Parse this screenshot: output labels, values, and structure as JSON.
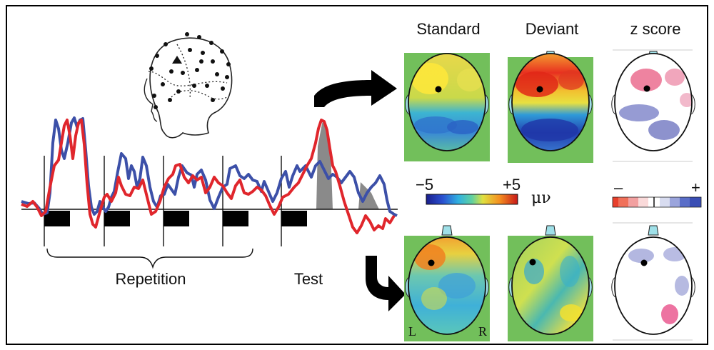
{
  "labels": {
    "standard": "Standard",
    "deviant": "Deviant",
    "zscore": "z score",
    "repetition": "Repetition",
    "test": "Test",
    "scale_min": "−5",
    "scale_max": "+5",
    "unit": "μν",
    "z_minus": "–",
    "z_plus": "+",
    "left": "L",
    "right": "R"
  },
  "colors": {
    "blue_trace": "#3c50a8",
    "red_trace": "#e0262c",
    "shade": "#8a8a8a",
    "green_bg": "#72bf5b"
  },
  "icons": {
    "head_diagram": "infant-head-electrode-icon",
    "arrow": "curved-arrow-icon",
    "nose": "nose-marker-icon"
  }
}
